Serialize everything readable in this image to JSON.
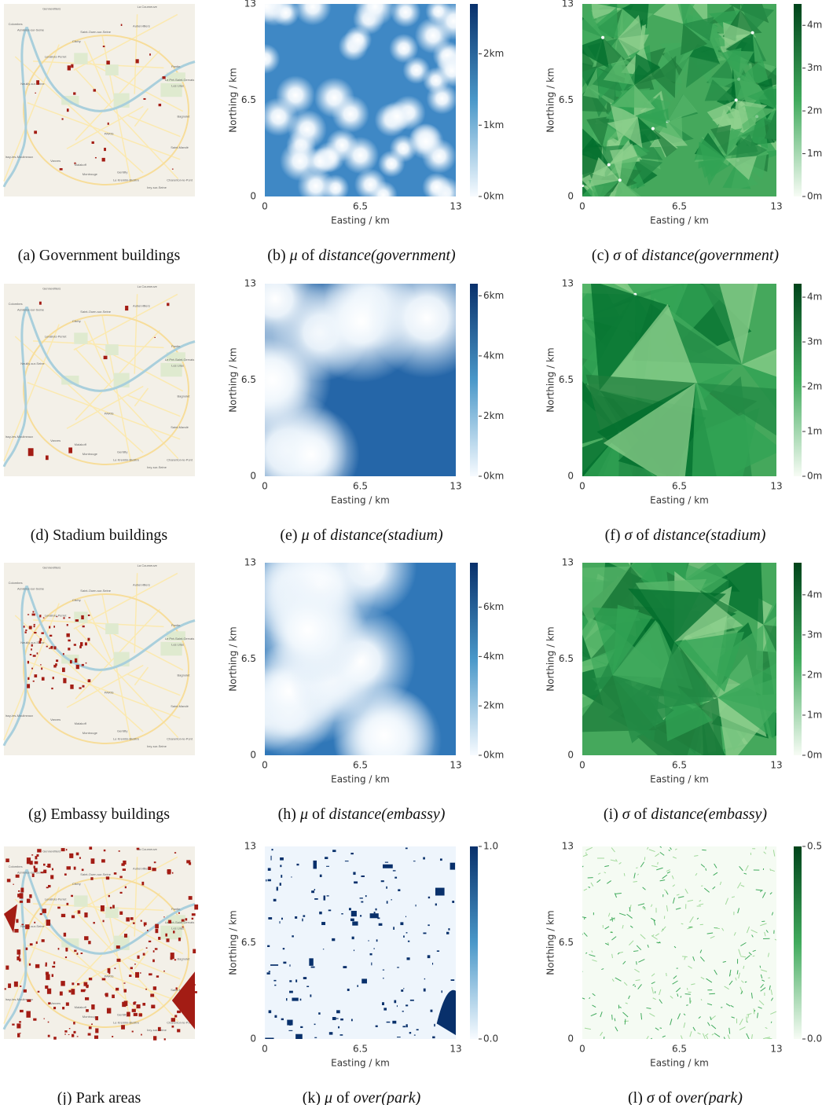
{
  "base_map": {
    "labels": [
      "Gennevilliers",
      "La Courneuve",
      "Colombes",
      "Asnières-sur-Seine",
      "Aubervilliers",
      "Saint-Ouen-sur-Seine",
      "Clichy",
      "Levallois-Perret",
      "Neuilly-sur-Seine",
      "Pantin",
      "Le Pré-Saint-Gervais",
      "Les Lilas",
      "Bagnolet",
      "PARIS",
      "Saint-Mandé",
      "Issy-les-Moulineaux",
      "Vanves",
      "Malakoff",
      "Montrouge",
      "Gentilly",
      "Le Kremlin-Bicêtre",
      "Ivry-sur-Seine",
      "Charenton-le-Pont"
    ]
  },
  "rows": [
    {
      "map": {
        "caption": [
          "(a)",
          "Government buildings"
        ]
      },
      "mu": {
        "caption": [
          "(b)",
          "μ",
          "of",
          "distance(government)"
        ],
        "xlabel": "Easting / km",
        "ylabel": "Northing / km",
        "xlim": [
          0,
          13
        ],
        "ylim": [
          0,
          13
        ],
        "xticks": [
          0,
          6.5,
          13
        ],
        "yticks": [
          0,
          6.5,
          13
        ],
        "clim": [
          0,
          2.7
        ],
        "cticks": [
          {
            "value": 0,
            "label": "0km"
          },
          {
            "value": 1,
            "label": "1km"
          },
          {
            "value": 2,
            "label": "2km"
          }
        ]
      },
      "sigma": {
        "caption": [
          "(c)",
          "σ",
          "of",
          "distance(government)"
        ],
        "xlabel": "Easting / km",
        "ylabel": "Northing / km",
        "xlim": [
          0,
          13
        ],
        "ylim": [
          0,
          13
        ],
        "xticks": [
          0,
          6.5,
          13
        ],
        "yticks": [
          0,
          6.5,
          13
        ],
        "clim": [
          0,
          4.5
        ],
        "cticks": [
          {
            "value": 0,
            "label": "0m"
          },
          {
            "value": 1,
            "label": "1m"
          },
          {
            "value": 2,
            "label": "2m"
          },
          {
            "value": 3,
            "label": "3m"
          },
          {
            "value": 4,
            "label": "4m"
          }
        ]
      }
    },
    {
      "map": {
        "caption": [
          "(d)",
          "Stadium buildings"
        ]
      },
      "mu": {
        "caption": [
          "(e)",
          "μ",
          "of",
          "distance(stadium)"
        ],
        "xlabel": "Easting / km",
        "ylabel": "Northing / km",
        "xlim": [
          0,
          13
        ],
        "ylim": [
          0,
          13
        ],
        "xticks": [
          0,
          6.5,
          13
        ],
        "yticks": [
          0,
          6.5,
          13
        ],
        "clim": [
          0,
          6.4
        ],
        "cticks": [
          {
            "value": 0,
            "label": "0km"
          },
          {
            "value": 2,
            "label": "2km"
          },
          {
            "value": 4,
            "label": "4km"
          },
          {
            "value": 6,
            "label": "6km"
          }
        ]
      },
      "sigma": {
        "caption": [
          "(f)",
          "σ",
          "of",
          "distance(stadium)"
        ],
        "xlabel": "Easting / km",
        "ylabel": "Northing / km",
        "xlim": [
          0,
          13
        ],
        "ylim": [
          0,
          13
        ],
        "xticks": [
          0,
          6.5,
          13
        ],
        "yticks": [
          0,
          6.5,
          13
        ],
        "clim": [
          0,
          4.3
        ],
        "cticks": [
          {
            "value": 0,
            "label": "0m"
          },
          {
            "value": 1,
            "label": "1m"
          },
          {
            "value": 2,
            "label": "2m"
          },
          {
            "value": 3,
            "label": "3m"
          },
          {
            "value": 4,
            "label": "4m"
          }
        ]
      }
    },
    {
      "map": {
        "caption": [
          "(g)",
          "Embassy buildings"
        ]
      },
      "mu": {
        "caption": [
          "(h)",
          "μ",
          "of",
          "distance(embassy)"
        ],
        "xlabel": "Easting / km",
        "ylabel": "Northing / km",
        "xlim": [
          0,
          13
        ],
        "ylim": [
          0,
          13
        ],
        "xticks": [
          0,
          6.5,
          13
        ],
        "yticks": [
          0,
          6.5,
          13
        ],
        "clim": [
          0,
          7.8
        ],
        "cticks": [
          {
            "value": 0,
            "label": "0km"
          },
          {
            "value": 2,
            "label": "2km"
          },
          {
            "value": 4,
            "label": "4km"
          },
          {
            "value": 6,
            "label": "6km"
          }
        ]
      },
      "sigma": {
        "caption": [
          "(i)",
          "σ",
          "of",
          "distance(embassy)"
        ],
        "xlabel": "Easting / km",
        "ylabel": "Northing / km",
        "xlim": [
          0,
          13
        ],
        "ylim": [
          0,
          13
        ],
        "xticks": [
          0,
          6.5,
          13
        ],
        "yticks": [
          0,
          6.5,
          13
        ],
        "clim": [
          0,
          4.8
        ],
        "cticks": [
          {
            "value": 0,
            "label": "0m"
          },
          {
            "value": 1,
            "label": "1m"
          },
          {
            "value": 2,
            "label": "2m"
          },
          {
            "value": 3,
            "label": "3m"
          },
          {
            "value": 4,
            "label": "4m"
          }
        ]
      }
    },
    {
      "map": {
        "caption": [
          "(j)",
          "Park areas"
        ]
      },
      "mu": {
        "caption": [
          "(k)",
          "μ",
          "of",
          "over(park)"
        ],
        "xlabel": "Easting / km",
        "ylabel": "Northing / km",
        "xlim": [
          0,
          13
        ],
        "ylim": [
          0,
          13
        ],
        "xticks": [
          0,
          6.5,
          13
        ],
        "yticks": [
          0,
          6.5,
          13
        ],
        "clim": [
          0,
          1
        ],
        "cticks": [
          {
            "value": 0,
            "label": "0.0"
          },
          {
            "value": 1,
            "label": "1.0"
          }
        ]
      },
      "sigma": {
        "caption": [
          "(l)",
          "σ",
          "of",
          "over(park)"
        ],
        "xlabel": "Easting / km",
        "ylabel": "Northing / km",
        "xlim": [
          0,
          13
        ],
        "ylim": [
          0,
          13
        ],
        "xticks": [
          0,
          6.5,
          13
        ],
        "yticks": [
          0,
          6.5,
          13
        ],
        "clim": [
          0,
          0.5
        ],
        "cticks": [
          {
            "value": 0,
            "label": "0.0"
          },
          {
            "value": 0.5,
            "label": "0.5"
          }
        ]
      }
    }
  ]
}
